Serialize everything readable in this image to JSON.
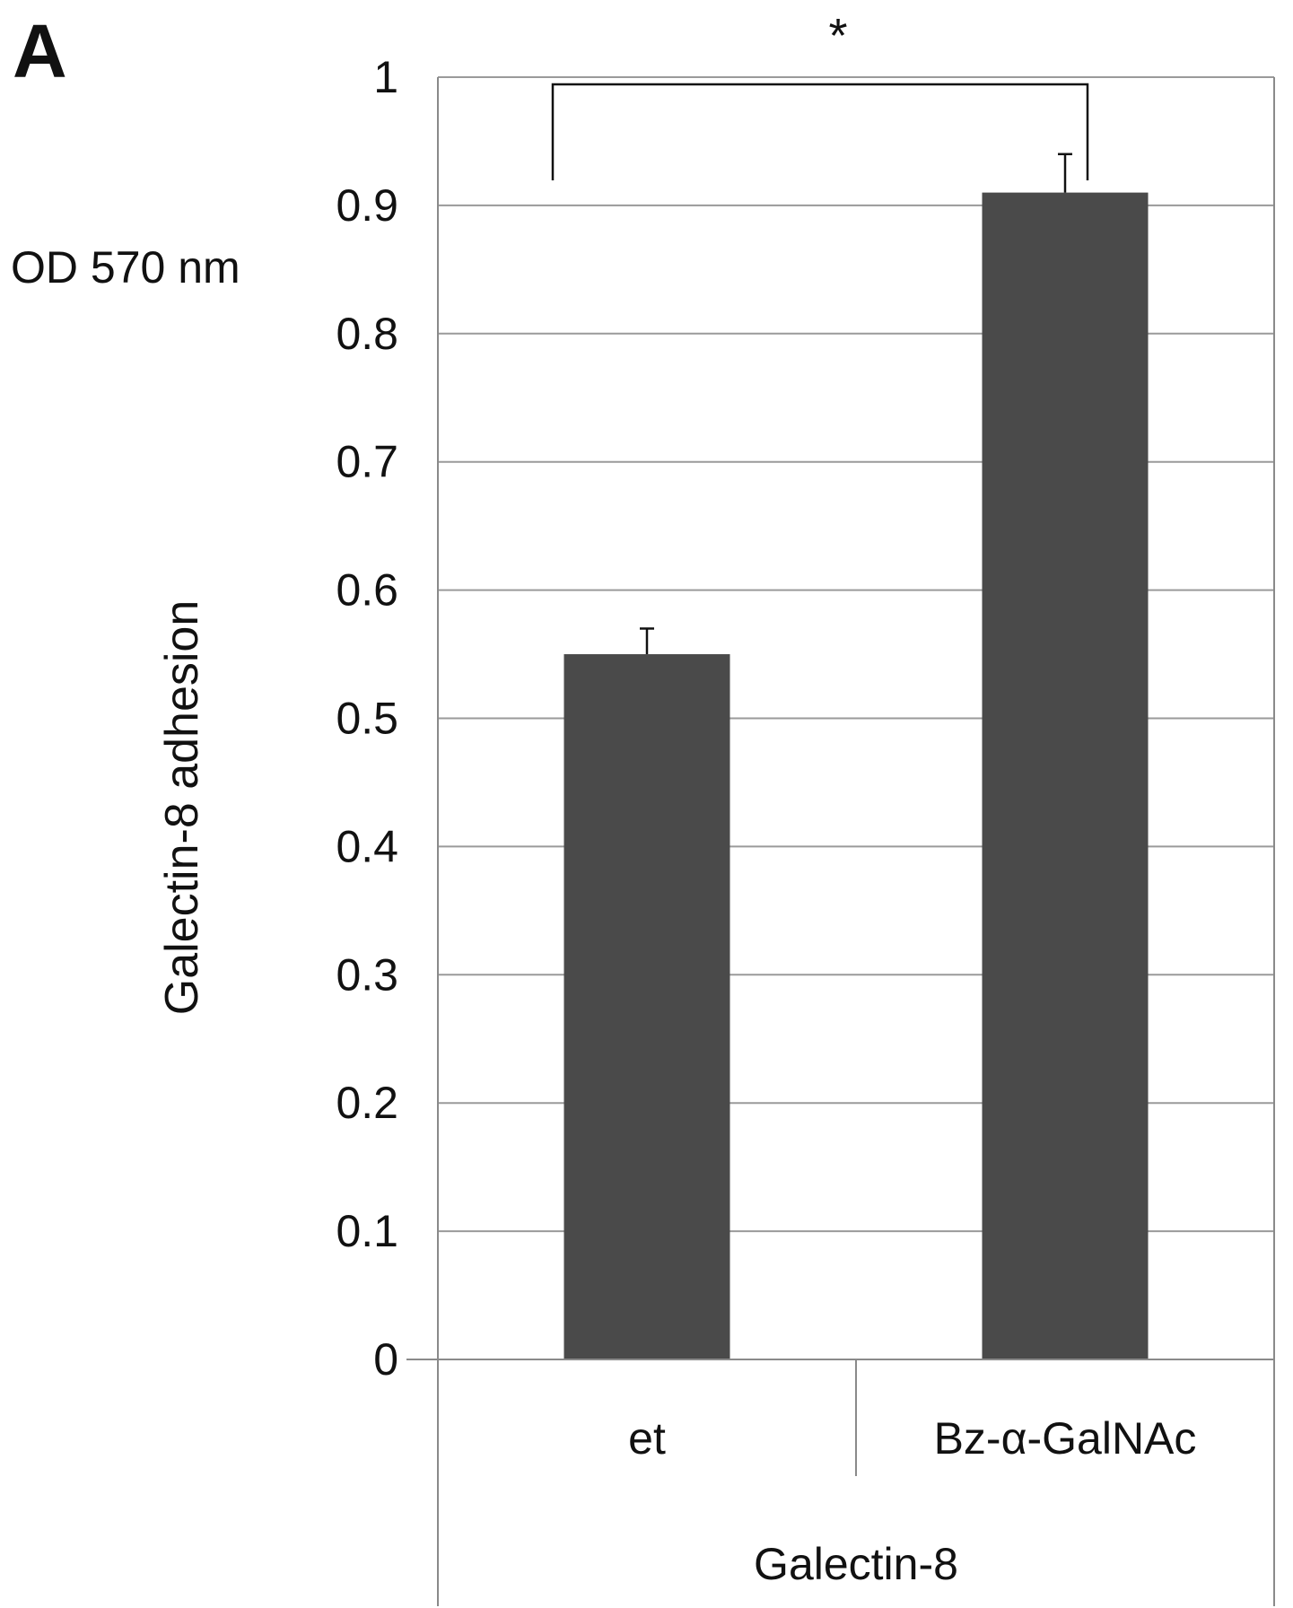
{
  "panel_label": "A",
  "chart_data": {
    "type": "bar",
    "categories": [
      "et",
      "Bz-α-GalNAc"
    ],
    "group_label": "Galectin-8",
    "series": [
      {
        "values": [
          0.55,
          0.91
        ],
        "error": [
          0.02,
          0.03
        ],
        "color": "#4a4a4a"
      }
    ],
    "ylabel": "Galectin-8 adhesion",
    "yunit": "OD 570 nm",
    "xlabel": "",
    "ylim": [
      0,
      1
    ],
    "yticks": [
      0,
      0.1,
      0.2,
      0.3,
      0.4,
      0.5,
      0.6,
      0.7,
      0.8,
      0.9,
      1
    ],
    "ytick_labels": [
      "0",
      "0.1",
      "0.2",
      "0.3",
      "0.4",
      "0.5",
      "0.6",
      "0.7",
      "0.8",
      "0.9",
      "1"
    ],
    "grid": true,
    "significance": {
      "between": [
        0,
        1
      ],
      "label": "*"
    },
    "colors": {
      "bar": "#4a4a4a",
      "grid": "#9a9a9a",
      "axis": "#8a8a8a",
      "ink": "#111111"
    }
  }
}
